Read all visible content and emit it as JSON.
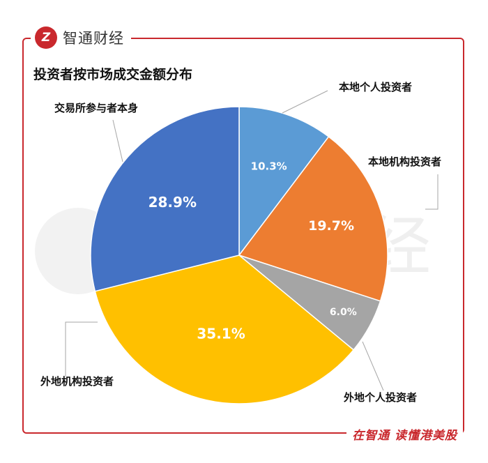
{
  "brand": {
    "logo_glyph": "Z",
    "name": "智通财经"
  },
  "footer": {
    "slogan": "在智通  读懂港美股"
  },
  "chart_data": {
    "type": "pie",
    "title": "投资者按市场成交金额分布",
    "unit": "%",
    "slices": [
      {
        "label": "本地个人投资者",
        "value": 10.3,
        "display": "10.3%",
        "color": "#5b9bd5"
      },
      {
        "label": "本地机构投资者",
        "value": 19.7,
        "display": "19.7%",
        "color": "#ed7d31"
      },
      {
        "label": "外地个人投资者",
        "value": 6.0,
        "display": "6.0%",
        "color": "#a5a5a5"
      },
      {
        "label": "外地机构投资者",
        "value": 35.1,
        "display": "35.1%",
        "color": "#ffc000"
      },
      {
        "label": "交易所参与者本身",
        "value": 28.9,
        "display": "28.9%",
        "color": "#4472c4"
      }
    ]
  },
  "watermark": {
    "text": "智通财经",
    "logo_glyph": "Z"
  },
  "colors": {
    "brand_red": "#c9282d"
  }
}
